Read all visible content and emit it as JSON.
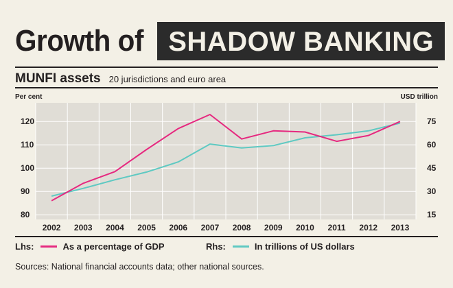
{
  "header": {
    "title_prefix": "Growth of",
    "title_highlight": "SHADOW BANKING",
    "subtitle": "MUNFI assets",
    "subtitle_note": "20 jurisdictions and euro area"
  },
  "colors": {
    "background": "#f3f0e6",
    "plot_background": "#e0ddd6",
    "gdp_series": "#e6287f",
    "usd_series": "#5ec9c2"
  },
  "legend": {
    "lhs_prefix": "Lhs:",
    "lhs_label": "As a percentage of GDP",
    "rhs_prefix": "Rhs:",
    "rhs_label": "In trillions of US dollars"
  },
  "sources": "Sources: National financial accounts data; other national sources.",
  "chart_data": {
    "type": "line",
    "x": [
      "2002",
      "2003",
      "2004",
      "2005",
      "2006",
      "2007",
      "2008",
      "2009",
      "2010",
      "2011",
      "2012",
      "2013"
    ],
    "left_axis": {
      "label": "Per cent",
      "ticks": [
        80,
        90,
        100,
        110,
        120
      ],
      "ylim": [
        78,
        128
      ]
    },
    "right_axis": {
      "label": "USD trillion",
      "ticks": [
        15,
        30,
        45,
        60,
        75
      ],
      "ylim": [
        12,
        87
      ]
    },
    "series": [
      {
        "name": "As a percentage of GDP",
        "axis": "left",
        "values": [
          86,
          93.5,
          98.5,
          108,
          117,
          123,
          112.5,
          116,
          115.5,
          111.5,
          114,
          120
        ]
      },
      {
        "name": "In trillions of US dollars",
        "axis": "right",
        "values": [
          27,
          32,
          37.5,
          42.5,
          49,
          60.5,
          58,
          59.5,
          64.5,
          66.5,
          69,
          74
        ]
      }
    ],
    "grid": true,
    "legend_position": "bottom"
  }
}
